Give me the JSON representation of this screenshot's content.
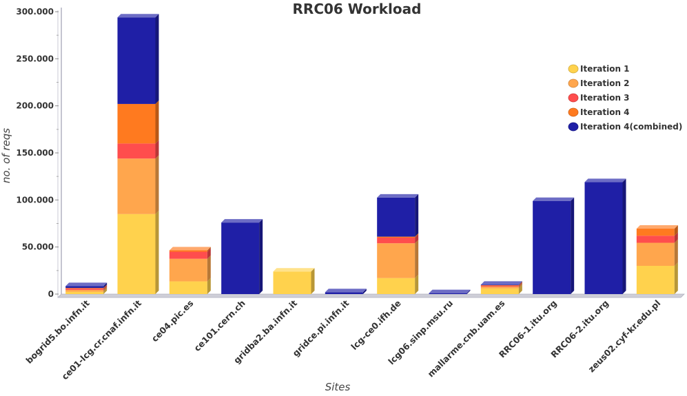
{
  "chart_data": {
    "type": "bar",
    "stacked": true,
    "title": "RRC06 Workload",
    "xlabel": "Sites",
    "ylabel": "no. of reqs",
    "ylim": [
      0,
      300000
    ],
    "yticks": [
      0,
      50000,
      100000,
      150000,
      200000,
      250000,
      300000
    ],
    "ytick_labels": [
      "0",
      "50.000",
      "100.000",
      "150.000",
      "200.000",
      "250.000",
      "300.000"
    ],
    "grid": false,
    "legend_position": "top-right",
    "categories": [
      "bogrid5.bo.infn.it",
      "ce01-lcg.cr.cnaf.infn.it",
      "ce04.pic.es",
      "ce101.cern.ch",
      "gridba2.ba.infn.it",
      "gridce.pi.infn.it",
      "lcg-ce0.ifh.de",
      "lcg06.sinp.msu.ru",
      "mallarme.cnb.uam.es",
      "RRC06-1.itu.org",
      "RRC06-2.itu.org",
      "zeus02.cyf-kr.edu.pl"
    ],
    "series": [
      {
        "name": "Iteration 1",
        "color": "#FFD24D",
        "values": [
          2500,
          85000,
          13500,
          0,
          24000,
          0,
          17000,
          0,
          6000,
          0,
          0,
          30000
        ]
      },
      {
        "name": "Iteration 2",
        "color": "#FFA64D",
        "values": [
          2000,
          59000,
          24000,
          0,
          0,
          0,
          37000,
          0,
          2000,
          0,
          0,
          24500
        ]
      },
      {
        "name": "Iteration 3",
        "color": "#FF4D4D",
        "values": [
          1500,
          16000,
          7500,
          0,
          0,
          0,
          6000,
          0,
          1000,
          0,
          0,
          7500
        ]
      },
      {
        "name": "Iteration 4",
        "color": "#FF7A1F",
        "values": [
          500,
          42000,
          1500,
          0,
          0,
          0,
          1000,
          0,
          500,
          0,
          0,
          7500
        ]
      },
      {
        "name": "Iteration 4(combined)",
        "color": "#1F1FA6",
        "values": [
          2000,
          92000,
          0,
          76000,
          0,
          2000,
          41500,
          1000,
          500,
          99000,
          119000,
          0
        ]
      }
    ]
  }
}
